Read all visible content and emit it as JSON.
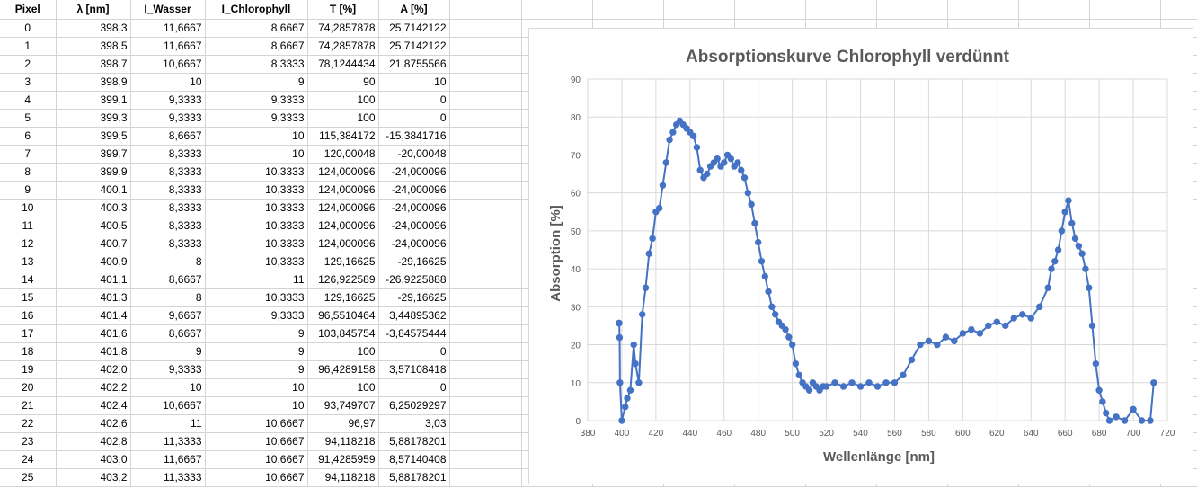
{
  "sheet": {
    "headers": [
      "Pixel",
      "λ [nm]",
      "I_Wasser",
      "I_Chlorophyll",
      "T [%]",
      "A [%]"
    ],
    "rows": [
      [
        "0",
        "398,3",
        "11,6667",
        "8,6667",
        "74,2857878",
        "25,7142122"
      ],
      [
        "1",
        "398,5",
        "11,6667",
        "8,6667",
        "74,2857878",
        "25,7142122"
      ],
      [
        "2",
        "398,7",
        "10,6667",
        "8,3333",
        "78,1244434",
        "21,8755566"
      ],
      [
        "3",
        "398,9",
        "10",
        "9",
        "90",
        "10"
      ],
      [
        "4",
        "399,1",
        "9,3333",
        "9,3333",
        "100",
        "0"
      ],
      [
        "5",
        "399,3",
        "9,3333",
        "9,3333",
        "100",
        "0"
      ],
      [
        "6",
        "399,5",
        "8,6667",
        "10",
        "115,384172",
        "-15,3841716"
      ],
      [
        "7",
        "399,7",
        "8,3333",
        "10",
        "120,00048",
        "-20,00048"
      ],
      [
        "8",
        "399,9",
        "8,3333",
        "10,3333",
        "124,000096",
        "-24,000096"
      ],
      [
        "9",
        "400,1",
        "8,3333",
        "10,3333",
        "124,000096",
        "-24,000096"
      ],
      [
        "10",
        "400,3",
        "8,3333",
        "10,3333",
        "124,000096",
        "-24,000096"
      ],
      [
        "11",
        "400,5",
        "8,3333",
        "10,3333",
        "124,000096",
        "-24,000096"
      ],
      [
        "12",
        "400,7",
        "8,3333",
        "10,3333",
        "124,000096",
        "-24,000096"
      ],
      [
        "13",
        "400,9",
        "8",
        "10,3333",
        "129,16625",
        "-29,16625"
      ],
      [
        "14",
        "401,1",
        "8,6667",
        "11",
        "126,922589",
        "-26,9225888"
      ],
      [
        "15",
        "401,3",
        "8",
        "10,3333",
        "129,16625",
        "-29,16625"
      ],
      [
        "16",
        "401,4",
        "9,6667",
        "9,3333",
        "96,5510464",
        "3,44895362"
      ],
      [
        "17",
        "401,6",
        "8,6667",
        "9",
        "103,845754",
        "-3,84575444"
      ],
      [
        "18",
        "401,8",
        "9",
        "9",
        "100",
        "0"
      ],
      [
        "19",
        "402,0",
        "9,3333",
        "9",
        "96,4289158",
        "3,57108418"
      ],
      [
        "20",
        "402,2",
        "10",
        "10",
        "100",
        "0"
      ],
      [
        "21",
        "402,4",
        "10,6667",
        "10",
        "93,749707",
        "6,25029297"
      ],
      [
        "22",
        "402,6",
        "11",
        "10,6667",
        "96,97",
        "3,03"
      ],
      [
        "23",
        "402,8",
        "11,3333",
        "10,6667",
        "94,118218",
        "5,88178201"
      ],
      [
        "24",
        "403,0",
        "11,6667",
        "10,6667",
        "91,4285959",
        "8,57140408"
      ],
      [
        "25",
        "403,2",
        "11,3333",
        "10,6667",
        "94,118218",
        "5,88178201"
      ]
    ]
  },
  "chart_data": {
    "type": "line",
    "title": "Absorptionskurve Chlorophyll  verdünnt",
    "xlabel": "Wellenlänge [nm]",
    "ylabel": "Absorption [%]",
    "xlim": [
      380,
      720
    ],
    "ylim": [
      0,
      90
    ],
    "xticks": [
      380,
      400,
      420,
      440,
      460,
      480,
      500,
      520,
      540,
      560,
      580,
      600,
      620,
      640,
      660,
      680,
      700,
      720
    ],
    "yticks": [
      0,
      10,
      20,
      30,
      40,
      50,
      60,
      70,
      80,
      90
    ],
    "grid": true,
    "marker": "circle",
    "series_color": "#4472c4",
    "series": [
      {
        "x": [
          398.3,
          398.5,
          398.7,
          398.9,
          400.0,
          402.0,
          403.2,
          405,
          407,
          408,
          410,
          412,
          414,
          416,
          418,
          420,
          422,
          424,
          426,
          428,
          430,
          432,
          434,
          436,
          438,
          440,
          442,
          444,
          446,
          448,
          450,
          452,
          454,
          456,
          458,
          460,
          462,
          464,
          466,
          468,
          470,
          472,
          474,
          476,
          478,
          480,
          482,
          484,
          486,
          488,
          490,
          492,
          494,
          496,
          498,
          500,
          502,
          504,
          506,
          508,
          510,
          512,
          514,
          516,
          518,
          520,
          525,
          530,
          535,
          540,
          545,
          550,
          555,
          560,
          565,
          570,
          575,
          580,
          585,
          590,
          595,
          600,
          605,
          610,
          615,
          620,
          625,
          630,
          635,
          640,
          645,
          650,
          652,
          654,
          656,
          658,
          660,
          662,
          664,
          666,
          668,
          670,
          672,
          674,
          676,
          678,
          680,
          682,
          684,
          686,
          690,
          695,
          700,
          705,
          710,
          712
        ],
        "y": [
          25.7,
          25.7,
          21.9,
          10,
          0,
          3.6,
          5.9,
          8,
          20,
          15,
          10,
          28,
          35,
          44,
          48,
          55,
          56,
          62,
          68,
          74,
          76,
          78,
          79,
          78,
          77,
          76,
          75,
          72,
          66,
          64,
          65,
          67,
          68,
          69,
          67,
          68,
          70,
          69,
          67,
          68,
          66,
          64,
          60,
          57,
          52,
          47,
          42,
          38,
          34,
          30,
          28,
          26,
          25,
          24,
          22,
          20,
          15,
          12,
          10,
          9,
          8,
          10,
          9,
          8,
          9,
          9,
          10,
          9,
          10,
          9,
          10,
          9,
          10,
          10,
          12,
          16,
          20,
          21,
          20,
          22,
          21,
          23,
          24,
          23,
          25,
          26,
          25,
          27,
          28,
          27,
          30,
          35,
          40,
          42,
          45,
          50,
          55,
          58,
          52,
          48,
          46,
          44,
          40,
          35,
          25,
          15,
          8,
          5,
          2,
          0,
          1,
          0,
          3,
          0,
          0,
          10
        ]
      }
    ]
  }
}
